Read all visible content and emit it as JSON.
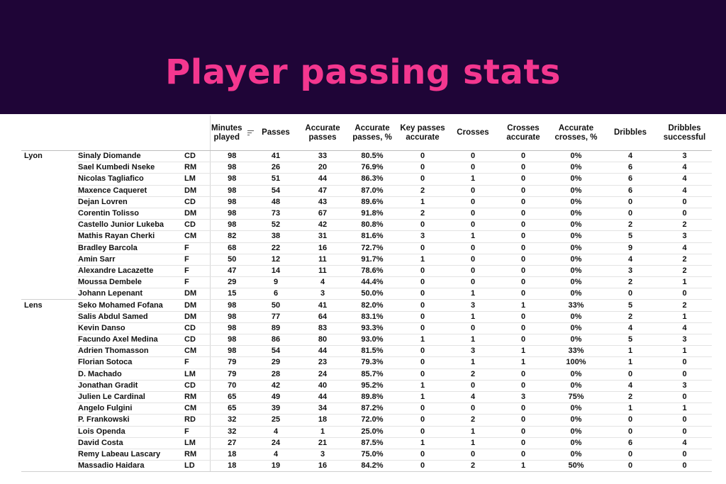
{
  "title": "Player passing stats",
  "sort_icon": "sort-descending-icon",
  "colors": {
    "banner": "#1f0537",
    "title": "#f4378f"
  },
  "columns": [
    "Minutes played",
    "Passes",
    "Accurate passes",
    "Accurate passes, %",
    "Key passes accurate",
    "Crosses",
    "Crosses accurate",
    "Accurate crosses, %",
    "Dribbles",
    "Dribbles successful"
  ],
  "groups": [
    {
      "team": "Lyon",
      "rows": [
        [
          "Sinaly Diomande",
          "CD",
          "98",
          "41",
          "33",
          "80.5%",
          "0",
          "0",
          "0",
          "0%",
          "4",
          "3"
        ],
        [
          "Sael Kumbedi Nseke",
          "RM",
          "98",
          "26",
          "20",
          "76.9%",
          "0",
          "0",
          "0",
          "0%",
          "6",
          "4"
        ],
        [
          "Nicolas Tagliafico",
          "LM",
          "98",
          "51",
          "44",
          "86.3%",
          "0",
          "1",
          "0",
          "0%",
          "6",
          "4"
        ],
        [
          "Maxence Caqueret",
          "DM",
          "98",
          "54",
          "47",
          "87.0%",
          "2",
          "0",
          "0",
          "0%",
          "6",
          "4"
        ],
        [
          "Dejan Lovren",
          "CD",
          "98",
          "48",
          "43",
          "89.6%",
          "1",
          "0",
          "0",
          "0%",
          "0",
          "0"
        ],
        [
          "Corentin Tolisso",
          "DM",
          "98",
          "73",
          "67",
          "91.8%",
          "2",
          "0",
          "0",
          "0%",
          "0",
          "0"
        ],
        [
          "Castello Junior Lukeba",
          "CD",
          "98",
          "52",
          "42",
          "80.8%",
          "0",
          "0",
          "0",
          "0%",
          "2",
          "2"
        ],
        [
          "Mathis Rayan Cherki",
          "CM",
          "82",
          "38",
          "31",
          "81.6%",
          "3",
          "1",
          "0",
          "0%",
          "5",
          "3"
        ],
        [
          "Bradley Barcola",
          "F",
          "68",
          "22",
          "16",
          "72.7%",
          "0",
          "0",
          "0",
          "0%",
          "9",
          "4"
        ],
        [
          "Amin Sarr",
          "F",
          "50",
          "12",
          "11",
          "91.7%",
          "1",
          "0",
          "0",
          "0%",
          "4",
          "2"
        ],
        [
          "Alexandre Lacazette",
          "F",
          "47",
          "14",
          "11",
          "78.6%",
          "0",
          "0",
          "0",
          "0%",
          "3",
          "2"
        ],
        [
          "Moussa Dembele",
          "F",
          "29",
          "9",
          "4",
          "44.4%",
          "0",
          "0",
          "0",
          "0%",
          "2",
          "1"
        ],
        [
          "Johann Lepenant",
          "DM",
          "15",
          "6",
          "3",
          "50.0%",
          "0",
          "1",
          "0",
          "0%",
          "0",
          "0"
        ]
      ]
    },
    {
      "team": "Lens",
      "rows": [
        [
          "Seko Mohamed Fofana",
          "DM",
          "98",
          "50",
          "41",
          "82.0%",
          "0",
          "3",
          "1",
          "33%",
          "5",
          "2"
        ],
        [
          "Salis Abdul Samed",
          "DM",
          "98",
          "77",
          "64",
          "83.1%",
          "0",
          "1",
          "0",
          "0%",
          "2",
          "1"
        ],
        [
          "Kevin Danso",
          "CD",
          "98",
          "89",
          "83",
          "93.3%",
          "0",
          "0",
          "0",
          "0%",
          "4",
          "4"
        ],
        [
          "Facundo Axel Medina",
          "CD",
          "98",
          "86",
          "80",
          "93.0%",
          "1",
          "1",
          "0",
          "0%",
          "5",
          "3"
        ],
        [
          "Adrien Thomasson",
          "CM",
          "98",
          "54",
          "44",
          "81.5%",
          "0",
          "3",
          "1",
          "33%",
          "1",
          "1"
        ],
        [
          "Florian Sotoca",
          "F",
          "79",
          "29",
          "23",
          "79.3%",
          "0",
          "1",
          "1",
          "100%",
          "1",
          "0"
        ],
        [
          "D. Machado",
          "LM",
          "79",
          "28",
          "24",
          "85.7%",
          "0",
          "2",
          "0",
          "0%",
          "0",
          "0"
        ],
        [
          "Jonathan Gradit",
          "CD",
          "70",
          "42",
          "40",
          "95.2%",
          "1",
          "0",
          "0",
          "0%",
          "4",
          "3"
        ],
        [
          "Julien Le Cardinal",
          "RM",
          "65",
          "49",
          "44",
          "89.8%",
          "1",
          "4",
          "3",
          "75%",
          "2",
          "0"
        ],
        [
          "Angelo Fulgini",
          "CM",
          "65",
          "39",
          "34",
          "87.2%",
          "0",
          "0",
          "0",
          "0%",
          "1",
          "1"
        ],
        [
          "P. Frankowski",
          "RD",
          "32",
          "25",
          "18",
          "72.0%",
          "0",
          "2",
          "0",
          "0%",
          "0",
          "0"
        ],
        [
          "Lois Openda",
          "F",
          "32",
          "4",
          "1",
          "25.0%",
          "0",
          "1",
          "0",
          "0%",
          "0",
          "0"
        ],
        [
          "David Costa",
          "LM",
          "27",
          "24",
          "21",
          "87.5%",
          "1",
          "1",
          "0",
          "0%",
          "6",
          "4"
        ],
        [
          "Remy Labeau Lascary",
          "RM",
          "18",
          "4",
          "3",
          "75.0%",
          "0",
          "0",
          "0",
          "0%",
          "0",
          "0"
        ],
        [
          "Massadio Haidara",
          "LD",
          "18",
          "19",
          "16",
          "84.2%",
          "0",
          "2",
          "1",
          "50%",
          "0",
          "0"
        ]
      ]
    }
  ]
}
